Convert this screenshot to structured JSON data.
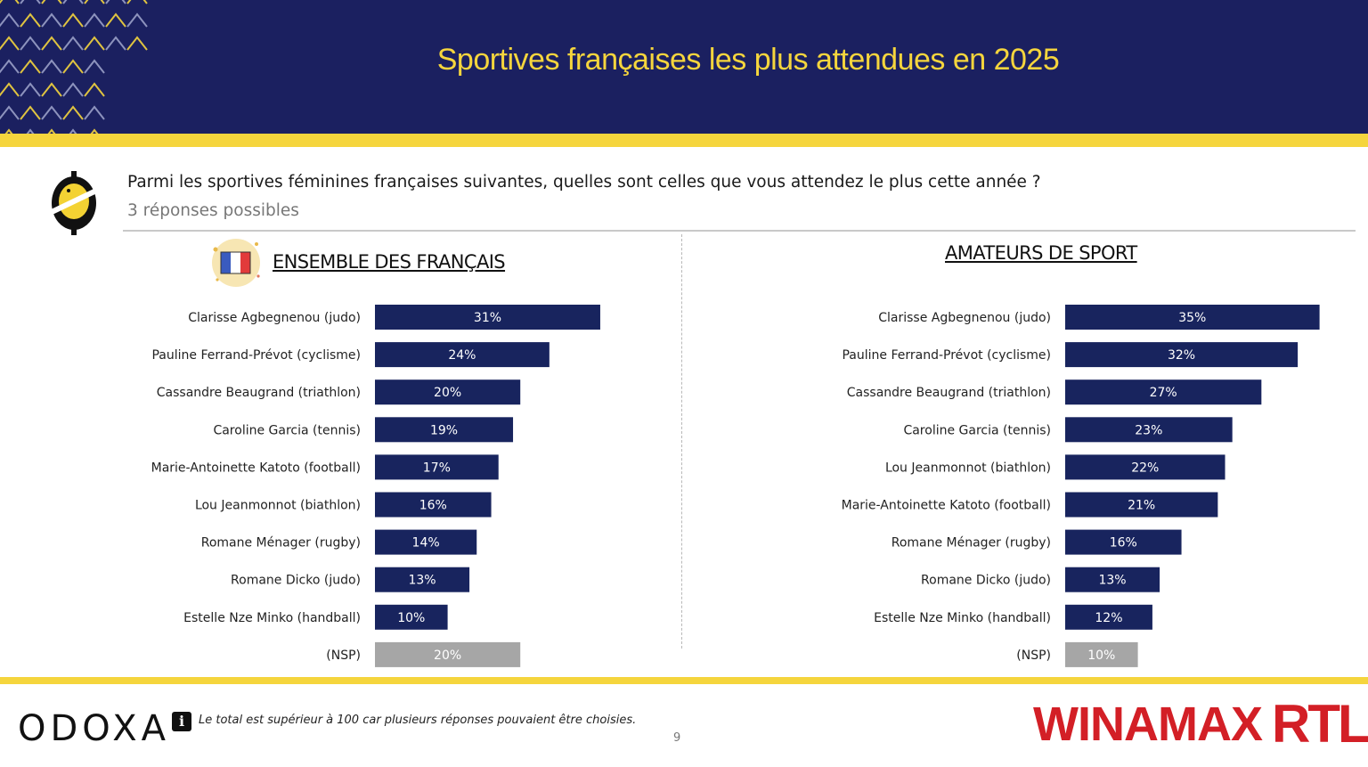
{
  "header": {
    "title": "Sportives françaises les plus attendues en 2025"
  },
  "question": {
    "text": "Parmi les sportives féminines françaises suivantes, quelles sont celles que vous attendez le plus cette année ?",
    "subtext": "3 réponses possibles"
  },
  "chart_data": [
    {
      "type": "bar",
      "orientation": "horizontal",
      "title": "ENSEMBLE DES FRANÇAIS",
      "categories": [
        "Clarisse Agbegnenou (judo)",
        "Pauline Ferrand-Prévot (cyclisme)",
        "Cassandre Beaugrand (triathlon)",
        "Caroline Garcia (tennis)",
        "Marie-Antoinette Katoto (football)",
        "Lou Jeanmonnot (biathlon)",
        "Romane Ménager (rugby)",
        "Romane Dicko (judo)",
        "Estelle Nze Minko (handball)",
        "(NSP)"
      ],
      "values": [
        31,
        24,
        20,
        19,
        17,
        16,
        14,
        13,
        10,
        20
      ],
      "labels": [
        "31%",
        "24%",
        "20%",
        "19%",
        "17%",
        "16%",
        "14%",
        "13%",
        "10%",
        "20%"
      ],
      "colors": [
        "#18245e",
        "#18245e",
        "#18245e",
        "#18245e",
        "#18245e",
        "#18245e",
        "#18245e",
        "#18245e",
        "#18245e",
        "#a6a6a6"
      ],
      "unit": "%"
    },
    {
      "type": "bar",
      "orientation": "horizontal",
      "title": "AMATEURS DE SPORT",
      "categories": [
        "Clarisse Agbegnenou (judo)",
        "Pauline Ferrand-Prévot (cyclisme)",
        "Cassandre Beaugrand (triathlon)",
        "Caroline Garcia (tennis)",
        "Lou Jeanmonnot (biathlon)",
        "Marie-Antoinette Katoto (football)",
        "Romane Ménager (rugby)",
        "Romane Dicko (judo)",
        "Estelle Nze Minko (handball)",
        "(NSP)"
      ],
      "values": [
        35,
        32,
        27,
        23,
        22,
        21,
        16,
        13,
        12,
        10
      ],
      "labels": [
        "35%",
        "32%",
        "27%",
        "23%",
        "22%",
        "21%",
        "16%",
        "13%",
        "12%",
        "10%"
      ],
      "colors": [
        "#18245e",
        "#18245e",
        "#18245e",
        "#18245e",
        "#18245e",
        "#18245e",
        "#18245e",
        "#18245e",
        "#18245e",
        "#a6a6a6"
      ],
      "unit": "%"
    }
  ],
  "footer": {
    "brand": "ODOXA",
    "note": "Le total est supérieur à 100 car plusieurs réponses pouvaient être choisies.",
    "info_icon": "info-icon",
    "page": "9",
    "partner1": "WINAMAX",
    "partner2": "RTL"
  },
  "colors": {
    "navy": "#1b2060",
    "yellow": "#f5d53d",
    "bar": "#18245e",
    "nsp": "#a6a6a6",
    "brand_red": "#d31f26"
  }
}
